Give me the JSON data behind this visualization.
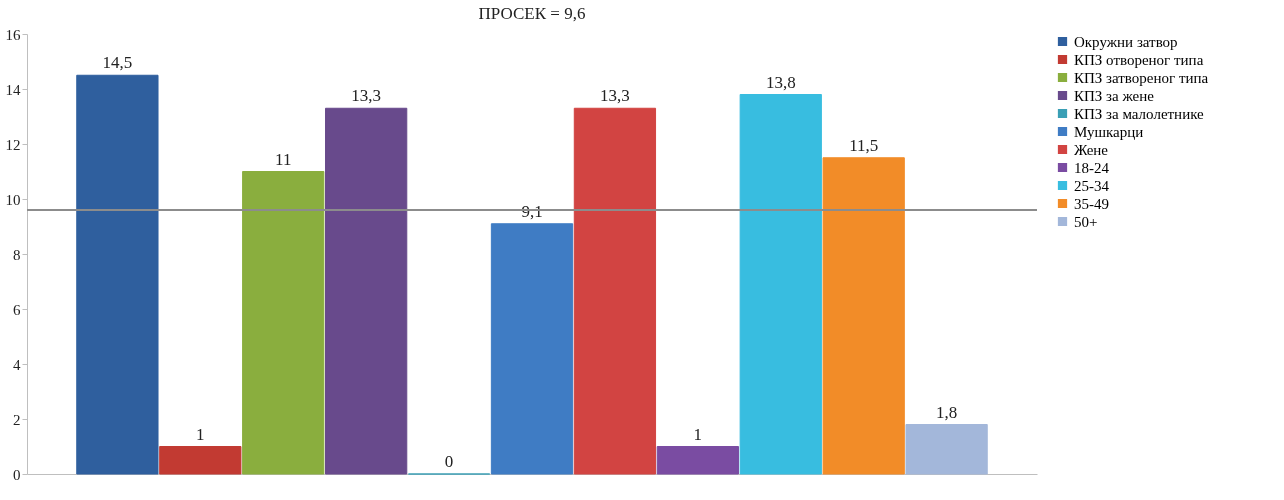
{
  "chart_data": {
    "type": "bar",
    "title": "ПРОСЕК = 9,6",
    "categories": [
      null,
      null,
      null,
      null,
      null,
      null,
      null,
      null,
      null,
      null,
      null
    ],
    "series": [
      {
        "name": "Окружни затвор",
        "color": "#2f5f9e",
        "values": [
          14.5,
          null,
          null,
          null,
          null,
          null,
          null,
          null,
          null,
          null,
          null
        ],
        "value_labels": [
          "14,5",
          null,
          null,
          null,
          null,
          null,
          null,
          null,
          null,
          null,
          null
        ]
      },
      {
        "name": "КПЗ отвореног типа",
        "color": "#c23a32",
        "values": [
          null,
          1,
          null,
          null,
          null,
          null,
          null,
          null,
          null,
          null,
          null
        ],
        "value_labels": [
          null,
          "1",
          null,
          null,
          null,
          null,
          null,
          null,
          null,
          null,
          null
        ]
      },
      {
        "name": "КПЗ затвореног типа",
        "color": "#8aae3e",
        "values": [
          null,
          null,
          11,
          null,
          null,
          null,
          null,
          null,
          null,
          null,
          null
        ],
        "value_labels": [
          null,
          null,
          "11",
          null,
          null,
          null,
          null,
          null,
          null,
          null,
          null
        ]
      },
      {
        "name": "КПЗ за жене",
        "color": "#684a8c",
        "values": [
          null,
          null,
          null,
          13.3,
          null,
          null,
          null,
          null,
          null,
          null,
          null
        ],
        "value_labels": [
          null,
          null,
          null,
          "13,3",
          null,
          null,
          null,
          null,
          null,
          null,
          null
        ]
      },
      {
        "name": "КПЗ за малолетнике",
        "color": "#3a9fb5",
        "values": [
          null,
          null,
          null,
          null,
          0,
          null,
          null,
          null,
          null,
          null,
          null
        ],
        "value_labels": [
          null,
          null,
          null,
          null,
          "0",
          null,
          null,
          null,
          null,
          null,
          null
        ]
      },
      {
        "name": "Мушкарци",
        "color": "#3f7cc4",
        "values": [
          null,
          null,
          null,
          null,
          null,
          9.1,
          null,
          null,
          null,
          null,
          null
        ],
        "value_labels": [
          null,
          null,
          null,
          null,
          null,
          "9,1",
          null,
          null,
          null,
          null,
          null
        ]
      },
      {
        "name": "Жене",
        "color": "#d24442",
        "values": [
          null,
          null,
          null,
          null,
          null,
          null,
          13.3,
          null,
          null,
          null,
          null
        ],
        "value_labels": [
          null,
          null,
          null,
          null,
          null,
          null,
          "13,3",
          null,
          null,
          null,
          null
        ]
      },
      {
        "name": "18-24",
        "color": "#7a4ca2",
        "values": [
          null,
          null,
          null,
          null,
          null,
          null,
          null,
          1,
          null,
          null,
          null
        ],
        "value_labels": [
          null,
          null,
          null,
          null,
          null,
          null,
          null,
          "1",
          null,
          null,
          null
        ]
      },
      {
        "name": "25-34",
        "color": "#38bde0",
        "values": [
          null,
          null,
          null,
          null,
          null,
          null,
          null,
          null,
          13.8,
          null,
          null
        ],
        "value_labels": [
          null,
          null,
          null,
          null,
          null,
          null,
          null,
          null,
          "13,8",
          null,
          null
        ]
      },
      {
        "name": "35-49",
        "color": "#f28c28",
        "values": [
          null,
          null,
          null,
          null,
          null,
          null,
          null,
          null,
          null,
          11.5,
          null
        ],
        "value_labels": [
          null,
          null,
          null,
          null,
          null,
          null,
          null,
          null,
          null,
          "11,5",
          null
        ]
      },
      {
        "name": "50+",
        "color": "#a3b7da",
        "values": [
          null,
          null,
          null,
          null,
          null,
          null,
          null,
          null,
          null,
          null,
          1.8
        ],
        "value_labels": [
          null,
          null,
          null,
          null,
          null,
          null,
          null,
          null,
          null,
          null,
          "1,8"
        ]
      }
    ],
    "ylim": [
      0,
      16
    ],
    "yticks": [
      0,
      2,
      4,
      6,
      8,
      10,
      12,
      14,
      16
    ],
    "ref_lines": [
      {
        "axis": "y",
        "value": 9.6,
        "color": "#8c8c8c"
      }
    ],
    "grid": false,
    "legend": "right"
  }
}
